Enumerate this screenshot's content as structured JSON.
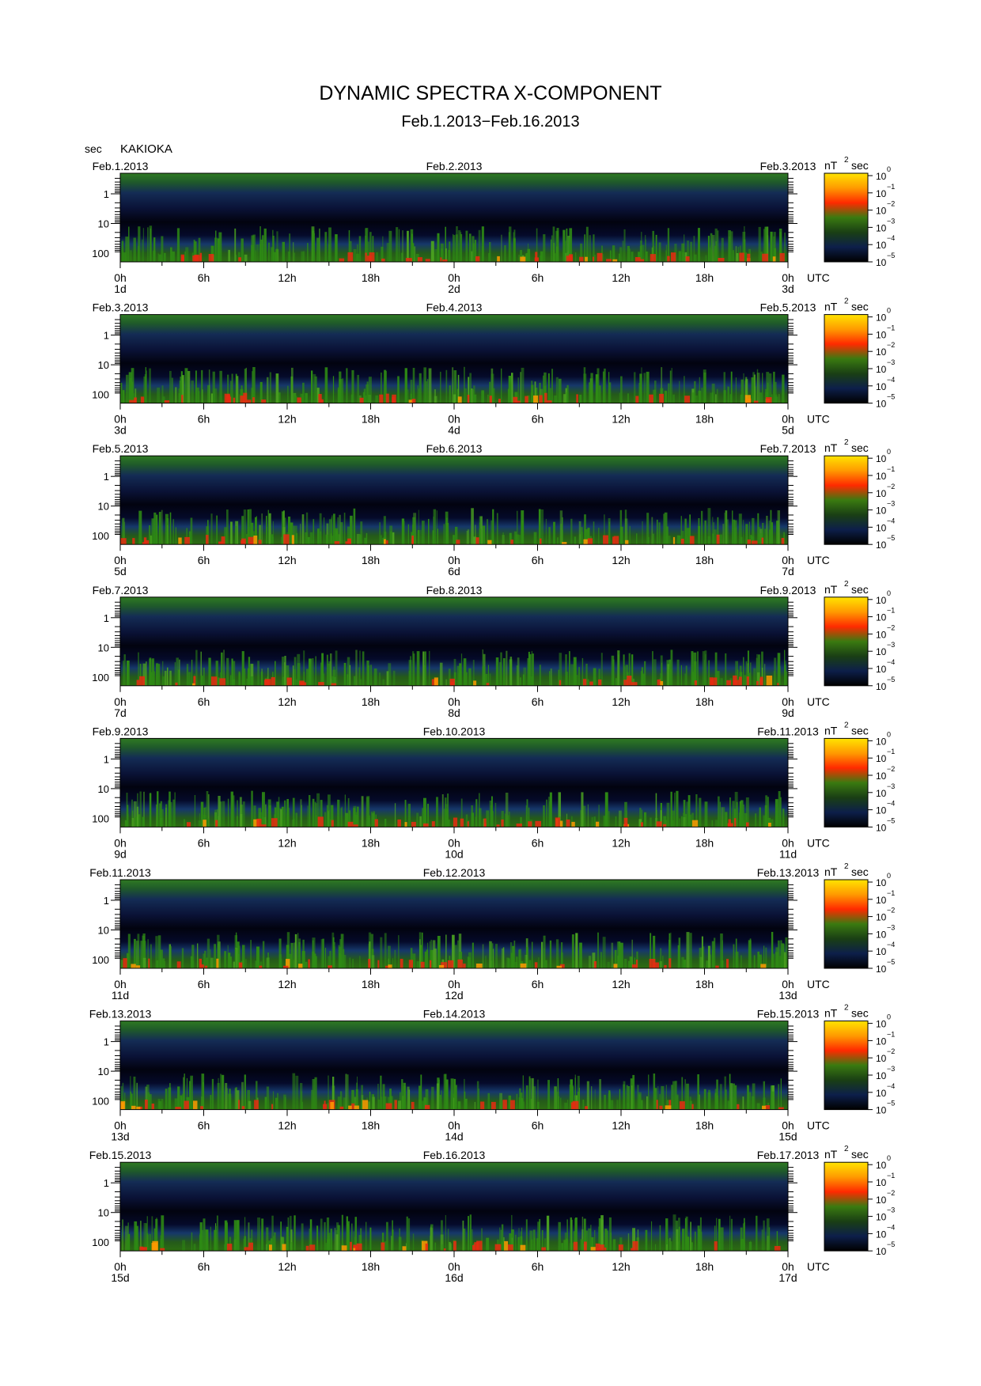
{
  "chart_data": {
    "type": "heatmap",
    "title": "DYNAMIC SPECTRA X-COMPONENT",
    "subtitle": "Feb.1.2013−Feb.16.2013",
    "station": "KAKIOKA",
    "y_unit": "sec",
    "y_ticks": [
      "1",
      "10",
      "100"
    ],
    "y_scale": "log",
    "x_ticks": [
      "0h",
      "6h",
      "12h",
      "18h",
      "0h",
      "6h",
      "12h",
      "18h",
      "0h"
    ],
    "x_unit": "UTC",
    "colorbar_unit": "nT",
    "colorbar_unit_exponent": "2",
    "colorbar_unit_suffix": "sec",
    "colorbar_scale": "log",
    "colorbar_base": "10",
    "colorbar_exponents": [
      "0",
      "−1",
      "−2",
      "−3",
      "−4",
      "−5"
    ],
    "colormap": [
      "#ffe400",
      "#ff9a00",
      "#ff2a00",
      "#3a7a10",
      "#1a3f14",
      "#0d1f4a",
      "#000000"
    ],
    "panels": [
      {
        "date_left": "Feb.1.2013",
        "date_mid": "Feb.2.2013",
        "date_right": "Feb.3.2013",
        "day_left": "1d",
        "day_mid": "2d",
        "day_right": "3d"
      },
      {
        "date_left": "Feb.3.2013",
        "date_mid": "Feb.4.2013",
        "date_right": "Feb.5.2013",
        "day_left": "3d",
        "day_mid": "4d",
        "day_right": "5d"
      },
      {
        "date_left": "Feb.5.2013",
        "date_mid": "Feb.6.2013",
        "date_right": "Feb.7.2013",
        "day_left": "5d",
        "day_mid": "6d",
        "day_right": "7d"
      },
      {
        "date_left": "Feb.7.2013",
        "date_mid": "Feb.8.2013",
        "date_right": "Feb.9.2013",
        "day_left": "7d",
        "day_mid": "8d",
        "day_right": "9d"
      },
      {
        "date_left": "Feb.9.2013",
        "date_mid": "Feb.10.2013",
        "date_right": "Feb.11.2013",
        "day_left": "9d",
        "day_mid": "10d",
        "day_right": "11d"
      },
      {
        "date_left": "Feb.11.2013",
        "date_mid": "Feb.12.2013",
        "date_right": "Feb.13.2013",
        "day_left": "11d",
        "day_mid": "12d",
        "day_right": "13d"
      },
      {
        "date_left": "Feb.13.2013",
        "date_mid": "Feb.14.2013",
        "date_right": "Feb.15.2013",
        "day_left": "13d",
        "day_mid": "14d",
        "day_right": "15d"
      },
      {
        "date_left": "Feb.15.2013",
        "date_mid": "Feb.16.2013",
        "date_right": "Feb.17.2013",
        "day_left": "15d",
        "day_mid": "16d",
        "day_right": "17d"
      }
    ]
  }
}
